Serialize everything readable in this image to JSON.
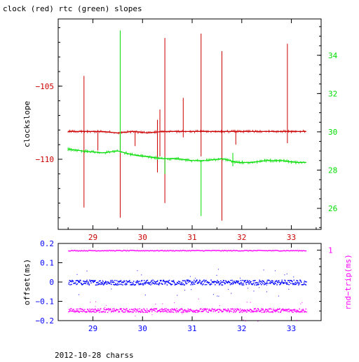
{
  "title": "clock (red) rtc (green) slopes",
  "footer": "2012-10-28 charss",
  "colors": {
    "clock": "#cc0000",
    "rtc": "#00dd00",
    "offset": "#0000ff",
    "roundtrip": "#ff00ff",
    "axis": "#000000"
  },
  "chart_data": [
    {
      "type": "line",
      "title": "clock (red) rtc (green) slopes",
      "xlim": [
        28.3,
        33.6
      ],
      "x_ticks": [
        29,
        30,
        31,
        32,
        33
      ],
      "x_tick_labels": [
        "29",
        "30",
        "31",
        "32",
        "33"
      ],
      "ylabel": "clockslope",
      "ylim": [
        -114.8,
        -100.4
      ],
      "y_ticks": [
        -105,
        -110
      ],
      "y_tick_labels": [
        "−105",
        "−110"
      ],
      "y2lim": [
        24.9,
        35.9
      ],
      "y2_ticks": [
        26,
        28,
        30,
        32,
        34
      ],
      "y2_tick_labels": [
        "26",
        "28",
        "30",
        "32",
        "34"
      ],
      "series": [
        {
          "name": "clock",
          "axis": "left",
          "x": [
            28.5,
            28.8,
            29.2,
            29.5,
            29.8,
            30.1,
            30.4,
            30.7,
            31.0,
            31.3,
            31.6,
            31.9,
            32.2,
            32.5,
            32.8,
            33.1,
            33.3
          ],
          "y": [
            -108.1,
            -108.1,
            -108.1,
            -108.2,
            -108.1,
            -108.2,
            -108.1,
            -108.1,
            -108.1,
            -108.1,
            -108.1,
            -108.1,
            -108.1,
            -108.1,
            -108.1,
            -108.1,
            -108.1
          ],
          "spikes": [
            {
              "x": 28.82,
              "low": -113.3,
              "high": -104.3
            },
            {
              "x": 29.1,
              "low": -109.4,
              "high": -108.1
            },
            {
              "x": 29.55,
              "low": -114.0,
              "high": -108.1
            },
            {
              "x": 29.85,
              "low": -109.1,
              "high": -108.1
            },
            {
              "x": 30.3,
              "low": -110.9,
              "high": -107.3
            },
            {
              "x": 30.35,
              "low": -109.8,
              "high": -106.6
            },
            {
              "x": 30.45,
              "low": -113.0,
              "high": -101.7
            },
            {
              "x": 30.82,
              "low": -108.5,
              "high": -105.8
            },
            {
              "x": 31.18,
              "low": -109.8,
              "high": -101.4
            },
            {
              "x": 31.6,
              "low": -114.2,
              "high": -102.6
            },
            {
              "x": 31.88,
              "low": -109.0,
              "high": -108.1
            },
            {
              "x": 32.92,
              "low": -108.9,
              "high": -102.1
            }
          ]
        },
        {
          "name": "rtc",
          "axis": "right",
          "x": [
            28.5,
            28.8,
            29.2,
            29.5,
            29.8,
            30.1,
            30.4,
            30.7,
            31.0,
            31.3,
            31.6,
            31.9,
            32.2,
            32.5,
            32.8,
            33.1,
            33.3
          ],
          "y": [
            29.1,
            29.0,
            28.9,
            29.0,
            28.8,
            28.7,
            28.6,
            28.6,
            28.5,
            28.5,
            28.6,
            28.4,
            28.4,
            28.5,
            28.5,
            28.4,
            28.4
          ],
          "spikes": [
            {
              "x": 29.55,
              "low": 28.9,
              "high": 35.3
            },
            {
              "x": 30.45,
              "low": 27.8,
              "high": 28.7
            },
            {
              "x": 31.18,
              "low": 25.6,
              "high": 28.5
            },
            {
              "x": 31.82,
              "low": 28.2,
              "high": 28.9
            }
          ]
        }
      ]
    },
    {
      "type": "scatter",
      "xlim": [
        28.3,
        33.6
      ],
      "x_ticks": [
        29,
        30,
        31,
        32,
        33
      ],
      "x_tick_labels": [
        "29",
        "30",
        "31",
        "32",
        "33"
      ],
      "ylabel": "offset(ms)",
      "ylim": [
        -0.2,
        0.2
      ],
      "y_ticks": [
        0.2,
        0.1,
        0,
        -0.1,
        -0.2
      ],
      "y_tick_labels": [
        "0.2",
        "0.1",
        "0",
        "−0.1",
        "−0.2"
      ],
      "y2label": "rnd−trip(ms)",
      "y2_ticks": [
        1
      ],
      "y2_tick_labels": [
        "1"
      ],
      "series": [
        {
          "name": "offset",
          "axis": "left",
          "x_range": [
            28.5,
            33.3
          ],
          "center": 0.0,
          "band": 0.013
        },
        {
          "name": "roundtrip-upper",
          "axis": "left",
          "x_range": [
            28.5,
            33.3
          ],
          "center": 0.165,
          "band": 0.002
        },
        {
          "name": "roundtrip-lower",
          "axis": "left",
          "x_range": [
            28.5,
            33.3
          ],
          "center": -0.145,
          "band": 0.01
        }
      ]
    }
  ]
}
